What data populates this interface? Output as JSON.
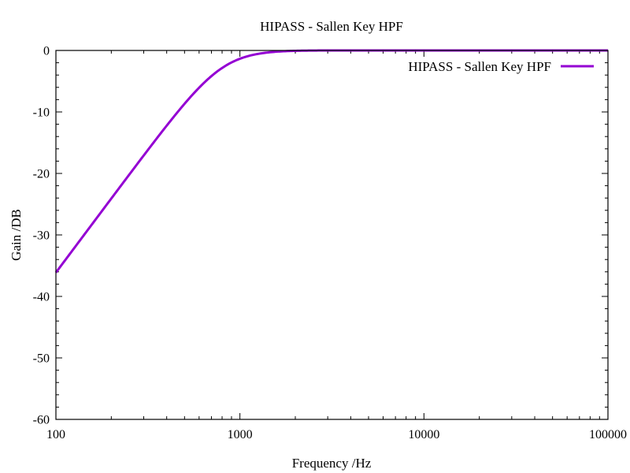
{
  "chart_data": {
    "type": "line",
    "title": "HIPASS - Sallen  Key HPF",
    "xlabel": "Frequency /Hz",
    "ylabel": "Gain /DB",
    "xscale": "log",
    "xlim": [
      100,
      100000
    ],
    "ylim": [
      -60,
      0
    ],
    "x_ticks": [
      "100",
      "1000",
      "10000",
      "100000"
    ],
    "y_ticks": [
      "0",
      "-10",
      "-20",
      "-30",
      "-40",
      "-50",
      "-60"
    ],
    "grid": false,
    "legend_position": "top-right",
    "series": [
      {
        "name": "HIPASS - Sallen  Key HPF",
        "color": "#9400d3",
        "filter": {
          "order": 2,
          "cutoff_hz": 800,
          "q": 0.72
        },
        "points": [
          [
            100,
            -37.6
          ],
          [
            200,
            -25.5
          ],
          [
            300,
            -18.5
          ],
          [
            400,
            -13.6
          ],
          [
            500,
            -9.8
          ],
          [
            600,
            -6.8
          ],
          [
            700,
            -4.5
          ],
          [
            800,
            -2.9
          ],
          [
            1000,
            -1.2
          ],
          [
            1200,
            -0.6
          ],
          [
            1500,
            -0.3
          ],
          [
            2000,
            -0.1
          ],
          [
            3000,
            0.0
          ],
          [
            10000,
            0.0
          ],
          [
            100000,
            0.0
          ]
        ]
      }
    ]
  }
}
